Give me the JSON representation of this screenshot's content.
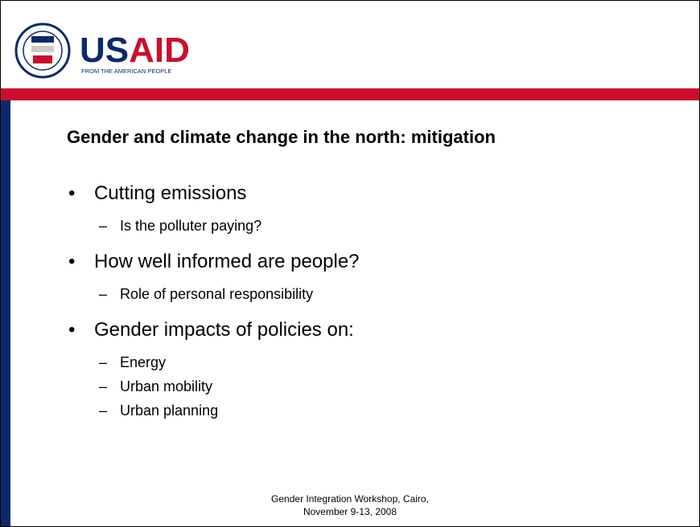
{
  "header": {
    "logo_us": "US",
    "logo_aid": "AID",
    "tagline": "FROM THE AMERICAN PEOPLE"
  },
  "slide": {
    "title": "Gender and climate change in the north: mitigation",
    "bullets": [
      {
        "text": "Cutting emissions",
        "sub": [
          "Is the polluter paying?"
        ]
      },
      {
        "text": "How well informed are people?",
        "sub": [
          "Role of personal responsibility"
        ]
      },
      {
        "text": "Gender impacts of policies on:",
        "sub": [
          "Energy",
          "Urban mobility",
          "Urban planning"
        ]
      }
    ]
  },
  "footer": [
    "Gender Integration Workshop, Cairo,",
    "November 9-13, 2008"
  ]
}
